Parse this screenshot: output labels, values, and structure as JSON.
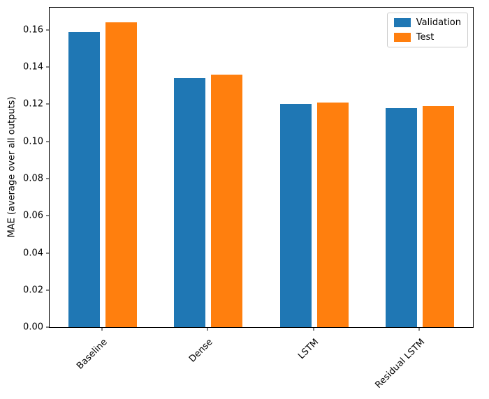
{
  "chart_data": {
    "type": "bar",
    "categories": [
      "Baseline",
      "Dense",
      "LSTM",
      "Residual LSTM"
    ],
    "series": [
      {
        "name": "Validation",
        "color": "#1f77b4",
        "values": [
          0.159,
          0.134,
          0.12,
          0.118
        ]
      },
      {
        "name": "Test",
        "color": "#ff7f0e",
        "values": [
          0.164,
          0.136,
          0.121,
          0.119
        ]
      }
    ],
    "title": "",
    "xlabel": "",
    "ylabel": "MAE (average over all outputs)",
    "ylim": [
      0,
      0.172
    ],
    "yticks": [
      0.0,
      0.02,
      0.04,
      0.06,
      0.08,
      0.1,
      0.12,
      0.14,
      0.16
    ],
    "ytick_format_decimals": 2,
    "grid": false,
    "legend_position": "upper right",
    "xtick_rotation_deg": 45
  }
}
